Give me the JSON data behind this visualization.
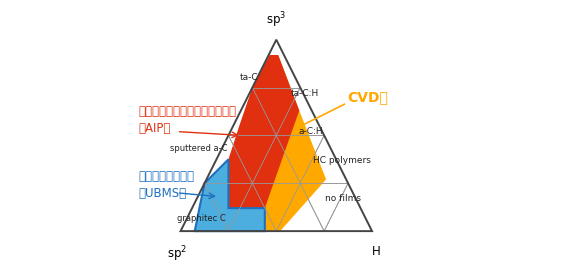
{
  "labels": {
    "sp3": "sp$^3$",
    "sp2": "sp$^2$",
    "H": "H",
    "ta-C": "ta-C",
    "ta-C:H": "ta-C:H",
    "a-C:H": "a-C:H",
    "HC_polymers": "HC polymers",
    "no_films": "no films",
    "sputtered_aC": "sputtered a-C",
    "graphitec_C": "graphitec C"
  },
  "region_AIP_color": "#E03010",
  "region_CVD_color": "#FFA800",
  "region_UBMS_color": "#4BAEDE",
  "region_UBMS_edge": "#1E6FBF",
  "grid_color": "#999999",
  "outline_color": "#444444",
  "background": "#ffffff",
  "aip_label": "アークイオンプレーティング法\n（AIP）",
  "aip_label_color": "#E03010",
  "ubms_label": "スパッタリング法\n（UBMS）",
  "ubms_label_color": "#1E6FBF",
  "cvd_label": "CVD法",
  "cvd_label_color": "#FFA800"
}
